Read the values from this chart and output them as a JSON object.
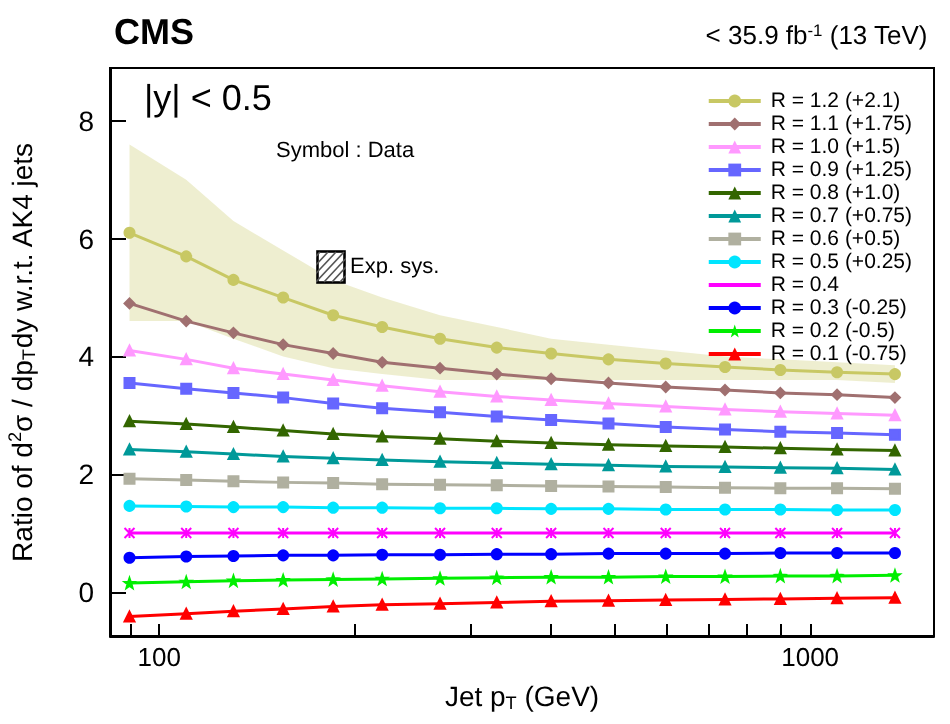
{
  "chart_data": {
    "type": "line",
    "title": "CMS",
    "subtitle": "< 35.9 fb$^{-1}$ (13 TeV)",
    "xlabel": "Jet p$_{T}$ (GeV)",
    "ylabel": "Ratio of d$^{2}$σ / dp$_{T}$dy w.r.t. AK4 jets",
    "annotations": [
      "|y| < 0.5",
      "Symbol : Data",
      "Exp. sys."
    ],
    "x": [
      90,
      110,
      130,
      155,
      185,
      220,
      270,
      330,
      400,
      490,
      600,
      740,
      900,
      1100,
      1350
    ],
    "log": "x",
    "xlim": [
      84,
      1550
    ],
    "xticks": [
      {
        "value": 90,
        "label": null
      },
      100,
      {
        "value": 200,
        "label": null
      },
      {
        "value": 300,
        "label": null
      },
      {
        "value": 400,
        "label": null
      },
      {
        "value": 500,
        "label": null
      },
      {
        "value": 600,
        "label": null
      },
      {
        "value": 700,
        "label": null
      },
      {
        "value": 800,
        "label": null
      },
      {
        "value": 900,
        "label": null
      },
      1000
    ],
    "ylim": [
      -0.75,
      8.9
    ],
    "yticks": [
      0,
      2,
      4,
      6,
      8
    ],
    "grid": false,
    "legend": "top right",
    "series": [
      {
        "name": "R = 1.2 (+2.1)",
        "color": "#c8c864",
        "marker": "circle",
        "values": [
          6.1,
          5.7,
          5.3,
          5.0,
          4.7,
          4.5,
          4.3,
          4.15,
          4.05,
          3.95,
          3.88,
          3.82,
          3.77,
          3.73,
          3.7
        ],
        "lower": [
          4.6,
          4.6,
          4.3,
          4.0,
          3.8,
          3.7,
          3.6,
          3.6,
          3.6,
          3.6,
          3.6,
          3.6,
          3.6,
          3.6,
          3.55
        ],
        "upper": [
          7.6,
          7.0,
          6.3,
          5.8,
          5.3,
          5.0,
          4.7,
          4.5,
          4.3,
          4.2,
          4.1,
          4.0,
          3.95,
          3.9,
          3.85
        ]
      },
      {
        "name": "R = 1.1 (+1.75)",
        "color": "#a07070",
        "marker": "diamond",
        "values": [
          4.9,
          4.6,
          4.4,
          4.2,
          4.05,
          3.9,
          3.8,
          3.7,
          3.62,
          3.55,
          3.48,
          3.43,
          3.38,
          3.35,
          3.3
        ]
      },
      {
        "name": "R = 1.0 (+1.5)",
        "color": "#ff99ff",
        "marker": "triangle",
        "values": [
          4.1,
          3.95,
          3.8,
          3.7,
          3.6,
          3.5,
          3.4,
          3.32,
          3.26,
          3.2,
          3.15,
          3.1,
          3.06,
          3.03,
          3.0
        ]
      },
      {
        "name": "R = 0.9 (+1.25)",
        "color": "#6666ff",
        "marker": "square",
        "values": [
          3.55,
          3.45,
          3.38,
          3.3,
          3.2,
          3.12,
          3.05,
          2.98,
          2.92,
          2.86,
          2.8,
          2.76,
          2.72,
          2.7,
          2.67
        ]
      },
      {
        "name": "R = 0.8 (+1.0)",
        "color": "#336600",
        "marker": "triangle",
        "values": [
          2.9,
          2.85,
          2.8,
          2.74,
          2.68,
          2.64,
          2.6,
          2.56,
          2.53,
          2.5,
          2.48,
          2.46,
          2.44,
          2.42,
          2.4
        ]
      },
      {
        "name": "R = 0.7 (+0.75)",
        "color": "#009999",
        "marker": "triangle",
        "values": [
          2.42,
          2.38,
          2.34,
          2.3,
          2.27,
          2.24,
          2.21,
          2.19,
          2.17,
          2.15,
          2.13,
          2.12,
          2.11,
          2.1,
          2.08
        ]
      },
      {
        "name": "R = 0.6 (+0.5)",
        "color": "#b0b0a0",
        "marker": "square",
        "values": [
          1.92,
          1.9,
          1.88,
          1.86,
          1.85,
          1.83,
          1.82,
          1.81,
          1.8,
          1.79,
          1.78,
          1.77,
          1.76,
          1.76,
          1.75
        ]
      },
      {
        "name": "R = 0.5 (+0.25)",
        "color": "#00e5ff",
        "marker": "circle",
        "values": [
          1.46,
          1.45,
          1.44,
          1.44,
          1.43,
          1.43,
          1.42,
          1.42,
          1.41,
          1.41,
          1.4,
          1.4,
          1.4,
          1.39,
          1.39
        ]
      },
      {
        "name": "R = 0.4",
        "color": "#ff00ff",
        "marker": "cross",
        "values": [
          1.0,
          1.0,
          1.0,
          1.0,
          1.0,
          1.0,
          1.0,
          1.0,
          1.0,
          1.0,
          1.0,
          1.0,
          1.0,
          1.0,
          1.0
        ]
      },
      {
        "name": "R = 0.3 (-0.25)",
        "color": "#0000ff",
        "marker": "circle",
        "values": [
          0.58,
          0.6,
          0.61,
          0.62,
          0.62,
          0.63,
          0.63,
          0.64,
          0.64,
          0.65,
          0.65,
          0.65,
          0.66,
          0.66,
          0.66
        ]
      },
      {
        "name": "R = 0.2 (-0.5)",
        "color": "#00ee00",
        "marker": "star",
        "values": [
          0.15,
          0.17,
          0.19,
          0.2,
          0.21,
          0.22,
          0.23,
          0.24,
          0.25,
          0.25,
          0.26,
          0.26,
          0.27,
          0.27,
          0.28
        ]
      },
      {
        "name": "R = 0.1 (-0.75)",
        "color": "#ff0000",
        "marker": "triangle",
        "values": [
          -0.42,
          -0.37,
          -0.33,
          -0.29,
          -0.25,
          -0.22,
          -0.2,
          -0.18,
          -0.16,
          -0.15,
          -0.14,
          -0.13,
          -0.12,
          -0.11,
          -0.1
        ]
      }
    ]
  }
}
